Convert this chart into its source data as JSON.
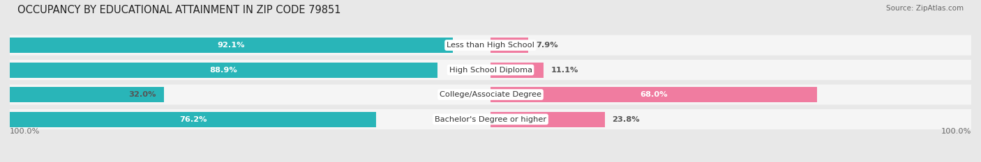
{
  "title": "OCCUPANCY BY EDUCATIONAL ATTAINMENT IN ZIP CODE 79851",
  "source": "Source: ZipAtlas.com",
  "categories": [
    "Less than High School",
    "High School Diploma",
    "College/Associate Degree",
    "Bachelor's Degree or higher"
  ],
  "owner_values": [
    92.1,
    88.9,
    32.0,
    76.2
  ],
  "renter_values": [
    7.9,
    11.1,
    68.0,
    23.8
  ],
  "owner_color": "#29b5b8",
  "renter_color": "#f07ca0",
  "bg_color": "#e8e8e8",
  "row_bg_color": "#f5f5f5",
  "title_fontsize": 10.5,
  "label_fontsize": 8.2,
  "source_fontsize": 7.5,
  "legend_fontsize": 8.2,
  "axis_label": "100.0%"
}
